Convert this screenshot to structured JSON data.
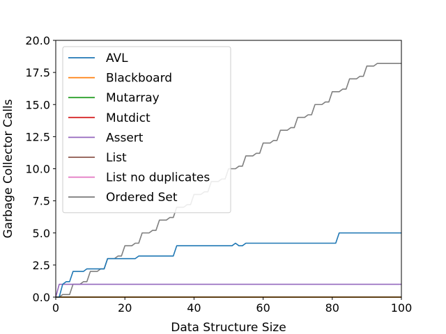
{
  "chart_data": {
    "type": "line",
    "title": "",
    "xlabel": "Data Structure Size",
    "ylabel": "Garbage Collector Calls",
    "xlim": [
      0,
      100
    ],
    "ylim": [
      0,
      20
    ],
    "xticks": [
      0,
      20,
      40,
      60,
      80,
      100
    ],
    "xtick_labels": [
      "0",
      "20",
      "40",
      "60",
      "80",
      "100"
    ],
    "yticks": [
      0,
      2.5,
      5,
      7.5,
      10,
      12.5,
      15,
      17.5,
      20
    ],
    "ytick_labels": [
      "0.0",
      "2.5",
      "5.0",
      "7.5",
      "10.0",
      "12.5",
      "15.0",
      "17.5",
      "20.0"
    ],
    "grid": false,
    "legend_position": "top-left",
    "series": [
      {
        "name": "AVL",
        "color": "#1f77b4",
        "x": [
          0,
          1,
          2,
          3,
          4,
          5,
          8,
          9,
          14,
          15,
          23,
          24,
          34,
          35,
          51,
          52,
          53,
          54,
          55,
          81,
          82,
          100
        ],
        "y": [
          0,
          0,
          1,
          1.2,
          1.2,
          2,
          2,
          2.2,
          2.2,
          3,
          3,
          3.2,
          3.2,
          4,
          4,
          4.2,
          4,
          4,
          4.2,
          4.2,
          5,
          5
        ]
      },
      {
        "name": "Blackboard",
        "color": "#ff7f0e",
        "x": [
          0,
          100
        ],
        "y": [
          0,
          0
        ]
      },
      {
        "name": "Mutarray",
        "color": "#2ca02c",
        "x": [
          0,
          100
        ],
        "y": [
          0,
          0
        ]
      },
      {
        "name": "Mutdict",
        "color": "#d62728",
        "x": [
          0,
          100
        ],
        "y": [
          0,
          0
        ]
      },
      {
        "name": "Assert",
        "color": "#9467bd",
        "x": [
          0,
          1,
          100
        ],
        "y": [
          0,
          1,
          1
        ]
      },
      {
        "name": "List",
        "color": "#8c564b",
        "x": [
          0,
          100
        ],
        "y": [
          0,
          0
        ]
      },
      {
        "name": "List no duplicates",
        "color": "#e377c2",
        "x": [
          0,
          100
        ],
        "y": [
          0,
          0
        ]
      },
      {
        "name": "Ordered Set",
        "color": "#7f7f7f",
        "x": [
          0,
          1,
          2,
          3,
          4,
          5,
          6,
          7,
          8,
          9,
          10,
          11,
          12,
          13,
          14,
          15,
          16,
          17,
          18,
          19,
          20,
          21,
          22,
          23,
          24,
          25,
          26,
          27,
          28,
          29,
          30,
          31,
          32,
          33,
          34,
          35,
          36,
          37,
          38,
          39,
          40,
          41,
          42,
          43,
          44,
          45,
          46,
          47,
          48,
          49,
          50,
          51,
          52,
          53,
          54,
          55,
          56,
          57,
          58,
          59,
          60,
          61,
          62,
          63,
          64,
          65,
          66,
          67,
          68,
          69,
          70,
          71,
          72,
          73,
          74,
          75,
          76,
          77,
          78,
          79,
          80,
          81,
          82,
          83,
          84,
          85,
          86,
          87,
          88,
          89,
          90,
          91,
          92,
          93,
          94,
          95,
          96,
          97,
          98,
          99,
          100
        ],
        "y": [
          0,
          0,
          0.2,
          0.2,
          0.2,
          1,
          1,
          1,
          1.2,
          1.2,
          2,
          2,
          2,
          2.2,
          2.2,
          3,
          3,
          3,
          3.2,
          3.2,
          4,
          4,
          4,
          4.2,
          4.2,
          5,
          5,
          5,
          5.2,
          5.2,
          6,
          6,
          6,
          6.2,
          6.2,
          7,
          7,
          7,
          7.2,
          7.2,
          8,
          8,
          8,
          8.2,
          8.2,
          9,
          9,
          9,
          9.2,
          9.2,
          10,
          10,
          10,
          10.2,
          10.2,
          11,
          11,
          11,
          11.2,
          11.2,
          12,
          12,
          12,
          12.2,
          12.2,
          13,
          13,
          13,
          13.2,
          13.2,
          14,
          14,
          14,
          14.2,
          14.2,
          15,
          15,
          15,
          15.2,
          15.2,
          16,
          16,
          16,
          16.2,
          16.2,
          17,
          17,
          17,
          17.2,
          17.2,
          18,
          18,
          18,
          18.2,
          18.2,
          18.2,
          18.2,
          18.2,
          18.2,
          18.2,
          18.2
        ]
      }
    ]
  }
}
